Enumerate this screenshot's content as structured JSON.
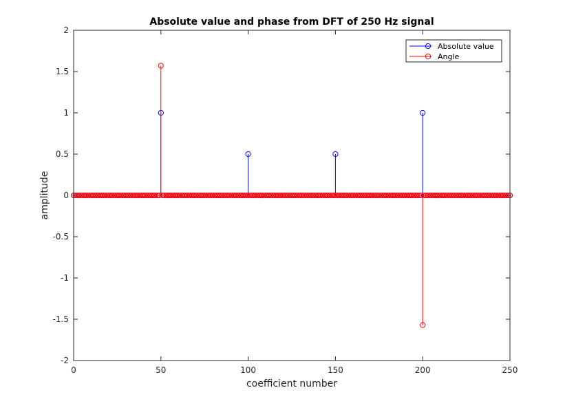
{
  "chart_data": {
    "type": "stem",
    "title": "Absolute value and phase from DFT of 250 Hz signal",
    "xlabel": "coefficient number",
    "ylabel": "amplitude",
    "xlim": [
      0,
      250
    ],
    "ylim": [
      -2,
      2
    ],
    "x_ticks": [
      "0",
      "50",
      "100",
      "150",
      "200",
      "250"
    ],
    "y_ticks": [
      "-2",
      "-1.5",
      "-1",
      "-0.5",
      "0",
      "0.5",
      "1",
      "1.5",
      "2"
    ],
    "grid": false,
    "legend_position": "top-right",
    "n_coefficients": 250,
    "x_start": 0,
    "x_step": 1,
    "series": [
      {
        "name": "Absolute value",
        "color": "#0000ff",
        "marker": "circle",
        "nonzero": [
          {
            "x": 50,
            "y": 1
          },
          {
            "x": 100,
            "y": 0.5
          },
          {
            "x": 150,
            "y": 0.5
          },
          {
            "x": 200,
            "y": 1
          }
        ],
        "baseline_value": 0
      },
      {
        "name": "Angle",
        "color": "#ff0000",
        "marker": "circle",
        "nonzero": [
          {
            "x": 50,
            "y": 1.5708
          },
          {
            "x": 200,
            "y": -1.5708
          }
        ],
        "baseline_value": 0
      }
    ]
  }
}
